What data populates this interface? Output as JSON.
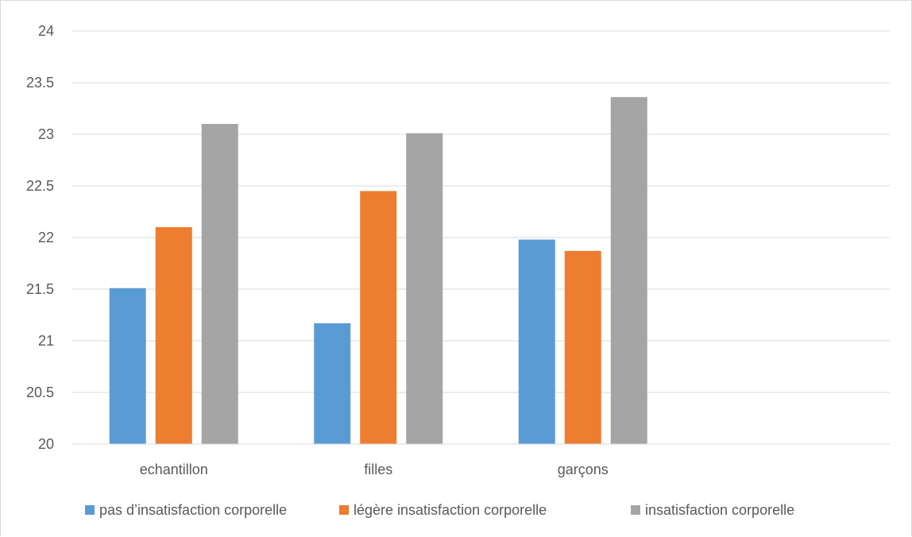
{
  "chart_data": {
    "type": "bar",
    "title": "",
    "xlabel": "",
    "ylabel": "",
    "categories": [
      "echantillon",
      "filles",
      "garçons"
    ],
    "series": [
      {
        "name": "pas d’insatisfaction corporelle",
        "color": "#5b9bd5",
        "values": [
          21.51,
          21.17,
          21.98
        ]
      },
      {
        "name": "légère insatisfaction corporelle",
        "color": "#ed7d31",
        "values": [
          22.1,
          22.45,
          21.87
        ]
      },
      {
        "name": "insatisfaction corporelle",
        "color": "#a5a5a5",
        "values": [
          23.1,
          23.01,
          23.36
        ]
      }
    ],
    "ylim": [
      20,
      24
    ],
    "yticks": [
      "20",
      "20.5",
      "21",
      "21.5",
      "22",
      "22.5",
      "23",
      "23.5",
      "24"
    ],
    "grid": true,
    "legend_position": "bottom"
  }
}
